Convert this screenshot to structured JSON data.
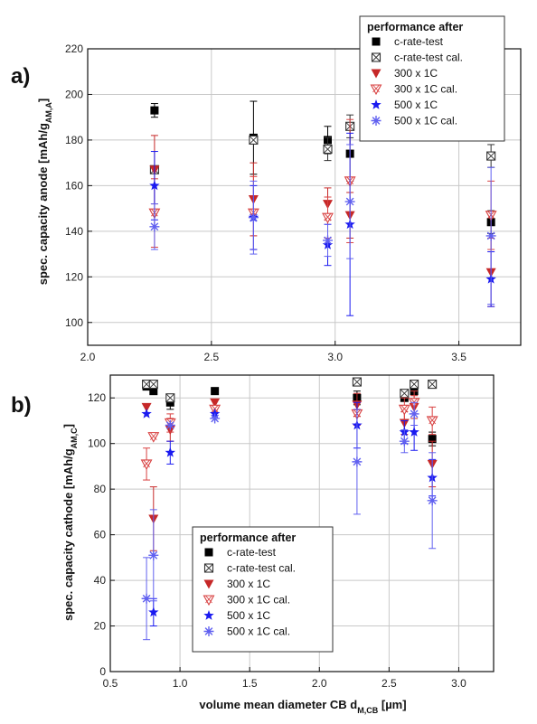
{
  "chart_data": [
    {
      "panel": "a)",
      "type": "scatter",
      "xlim": [
        2.0,
        3.75
      ],
      "ylim": [
        90,
        220
      ],
      "xticks": [
        2.0,
        2.5,
        3.0,
        3.5
      ],
      "xtick_labels": [
        "2.0",
        "2.5",
        "3.0",
        "3.5"
      ],
      "yticks": [
        100,
        120,
        140,
        160,
        180,
        200,
        220
      ],
      "ylabel_main": "spec. capacity anode  [mAh/g",
      "ylabel_sub": "AM,A",
      "ylabel_end": "]",
      "grid": true,
      "legend": {
        "placement": "top-right",
        "title": "performance after",
        "entries": [
          "c-rate-test",
          "c-rate-test  cal.",
          "300 x 1C",
          "300 x 1C    cal.",
          "500 x 1C",
          "500 x 1C    cal."
        ]
      },
      "series": [
        {
          "marker": "square-filled",
          "color": "#000000",
          "points": [
            [
              2.27,
              193,
              3
            ],
            [
              2.67,
              181,
              16
            ],
            [
              2.97,
              180,
              6
            ],
            [
              3.06,
              174,
              12
            ],
            [
              3.63,
              144,
              5
            ]
          ]
        },
        {
          "marker": "square-x",
          "color": "#333333",
          "points": [
            [
              2.27,
              167,
              0
            ],
            [
              2.67,
              180,
              0
            ],
            [
              2.97,
              176,
              5
            ],
            [
              3.06,
              186,
              5
            ],
            [
              3.63,
              173,
              5
            ]
          ]
        },
        {
          "marker": "triangle-down-filled",
          "color": "#c62828",
          "points": [
            [
              2.27,
              167,
              15
            ],
            [
              2.67,
              154,
              16
            ],
            [
              2.97,
              152,
              7
            ],
            [
              3.06,
              147,
              10
            ],
            [
              3.63,
              122,
              15
            ]
          ]
        },
        {
          "marker": "triangle-down-x",
          "color": "#d84040",
          "points": [
            [
              2.27,
              148,
              15
            ],
            [
              2.67,
              148,
              16
            ],
            [
              2.97,
              146,
              9
            ],
            [
              3.06,
              162,
              27
            ],
            [
              3.63,
              147,
              15
            ]
          ]
        },
        {
          "marker": "star",
          "color": "#1a1af0",
          "points": [
            [
              2.27,
              160,
              15
            ],
            [
              2.67,
              146,
              14
            ],
            [
              2.97,
              134,
              9
            ],
            [
              3.06,
              143,
              40
            ],
            [
              3.63,
              119,
              12
            ]
          ]
        },
        {
          "marker": "asterisk",
          "color": "#6060f0",
          "points": [
            [
              2.27,
              142,
              10
            ],
            [
              2.67,
              146,
              16
            ],
            [
              2.97,
              136,
              7
            ],
            [
              3.06,
              153,
              25
            ],
            [
              3.63,
              138,
              30
            ]
          ]
        }
      ]
    },
    {
      "panel": "b)",
      "type": "scatter",
      "xlim": [
        0.5,
        3.25
      ],
      "ylim": [
        0,
        130
      ],
      "xticks": [
        0.5,
        1.0,
        1.5,
        2.0,
        2.5,
        3.0
      ],
      "xtick_labels": [
        "0.5",
        "1.0",
        "1.5",
        "2.0",
        "2.5",
        "3.0"
      ],
      "yticks": [
        0,
        20,
        40,
        60,
        80,
        100,
        120
      ],
      "ylabel_main": "spec. capacity cathode  [mAh/g",
      "ylabel_sub": "AM,C",
      "ylabel_end": "]",
      "xlabel_main": "volume mean diameter CB d",
      "xlabel_sub": "M,CB",
      "xlabel_end": " [µm]",
      "grid": true,
      "legend": {
        "placement": "bottom-center",
        "title": "performance after",
        "entries": [
          "c-rate-test",
          "c-rate-test  cal.",
          "300 x 1C",
          "300 x 1C    cal.",
          "500 x 1C",
          "500 x 1C    cal."
        ]
      },
      "series": [
        {
          "marker": "square-filled",
          "color": "#000000",
          "points": [
            [
              0.76,
              125,
              0
            ],
            [
              0.81,
              123,
              0
            ],
            [
              0.93,
              118,
              3
            ],
            [
              1.25,
              123,
              0
            ],
            [
              2.27,
              120,
              3
            ],
            [
              2.61,
              120,
              0
            ],
            [
              2.68,
              123,
              0
            ],
            [
              2.81,
              102,
              3
            ]
          ]
        },
        {
          "marker": "square-x",
          "color": "#333333",
          "points": [
            [
              0.76,
              126,
              0
            ],
            [
              0.81,
              126,
              0
            ],
            [
              0.93,
              120,
              0
            ],
            [
              2.27,
              127,
              0
            ],
            [
              2.61,
              122,
              0
            ],
            [
              2.68,
              126,
              0
            ],
            [
              2.81,
              126,
              0
            ]
          ]
        },
        {
          "marker": "triangle-down-filled",
          "color": "#c62828",
          "points": [
            [
              0.76,
              116,
              0
            ],
            [
              0.81,
              67,
              14
            ],
            [
              0.93,
              106,
              5
            ],
            [
              1.25,
              118,
              0
            ],
            [
              2.27,
              117,
              5
            ],
            [
              2.61,
              109,
              5
            ],
            [
              2.68,
              116,
              5
            ],
            [
              2.81,
              91,
              10
            ]
          ]
        },
        {
          "marker": "triangle-down-x",
          "color": "#d84040",
          "points": [
            [
              0.76,
              91,
              7
            ],
            [
              0.81,
              103,
              0
            ],
            [
              0.93,
              109,
              4
            ],
            [
              1.25,
              115,
              0
            ],
            [
              2.27,
              113,
              5
            ],
            [
              2.61,
              115,
              5
            ],
            [
              2.68,
              118,
              5
            ],
            [
              2.81,
              110,
              6
            ]
          ]
        },
        {
          "marker": "star",
          "color": "#1a1af0",
          "points": [
            [
              0.76,
              113,
              0
            ],
            [
              0.81,
              26,
              6
            ],
            [
              0.93,
              96,
              5
            ],
            [
              1.25,
              113,
              0
            ],
            [
              2.27,
              108,
              10
            ],
            [
              2.61,
              105,
              5
            ],
            [
              2.68,
              105,
              8
            ],
            [
              2.81,
              85,
              8
            ]
          ]
        },
        {
          "marker": "asterisk",
          "color": "#6060f0",
          "points": [
            [
              0.76,
              32,
              18
            ],
            [
              0.81,
              51,
              20
            ],
            [
              0.93,
              108,
              0
            ],
            [
              1.25,
              111,
              0
            ],
            [
              2.27,
              92,
              23
            ],
            [
              2.61,
              101,
              5
            ],
            [
              2.68,
              113,
              5
            ],
            [
              2.81,
              75,
              21
            ]
          ]
        }
      ]
    }
  ]
}
